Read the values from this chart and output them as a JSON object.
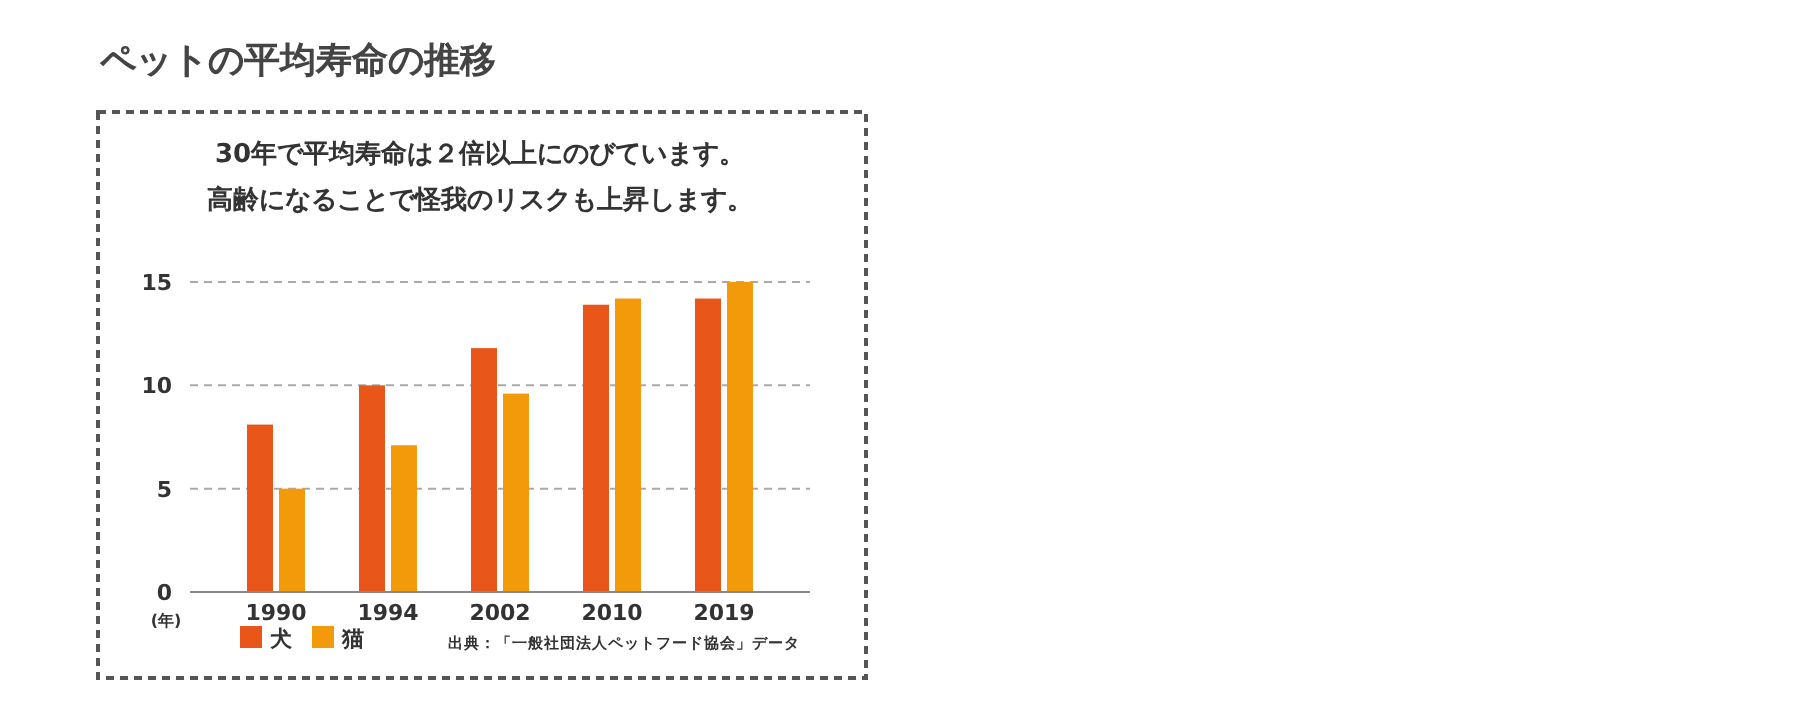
{
  "chart_data": {
    "type": "bar",
    "title": "ペットの平均寿命の推移",
    "subtitle": "30年で平均寿命は２倍以上にのびています。",
    "xlabel": "(年)",
    "categories": [
      "1990",
      "1994",
      "2002",
      "2010",
      "2019"
    ],
    "series": [
      {
        "name": "犬",
        "color": "#e8561a",
        "values": [
          8.1,
          10.0,
          11.8,
          13.9,
          14.2
        ]
      },
      {
        "name": "猫",
        "color": "#f29a0a",
        "values": [
          5.0,
          7.1,
          9.6,
          14.2,
          15.0
        ]
      }
    ],
    "ylim": [
      0,
      15
    ],
    "yticks": [
      0,
      5,
      10,
      15
    ],
    "grid": "y",
    "legend": "bottom left",
    "annotations": [
      "高齢になることで怪我のリスクも上昇します。",
      "出典：「一般社団法人ペットフード協会」データ"
    ]
  }
}
